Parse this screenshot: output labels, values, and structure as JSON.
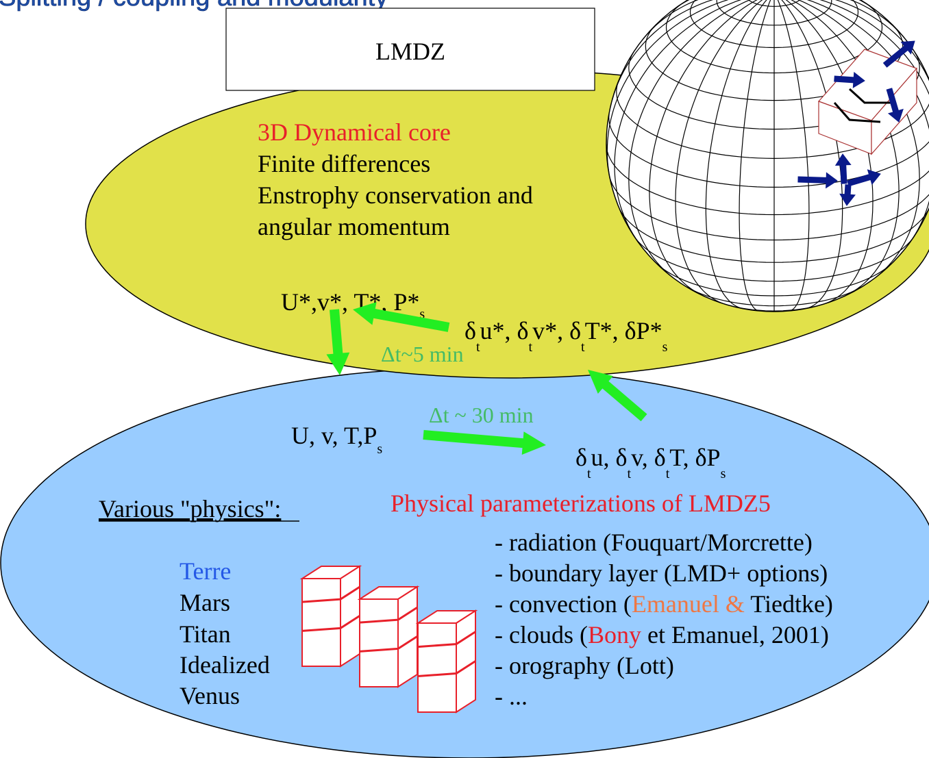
{
  "slide": {
    "title": "Splitting / coupling and modularity",
    "model_box_label": "LMDZ"
  },
  "dynamics": {
    "heading": "3D Dynamical core",
    "lines": [
      "Finite differences",
      "Enstrophy conservation and",
      "angular momentum"
    ],
    "vars_star": {
      "a": "U*,v*, T*, P*",
      "sub": "s"
    },
    "tendency_star": {
      "p1": "δ",
      "t1": "t",
      "p2": "u*, δ",
      "t2": "t",
      "p3": "v*, δ",
      "t3": "t",
      "p4": "T*, δP*",
      "sub": "s"
    },
    "dt": "Δt~5 min"
  },
  "physics": {
    "vars": {
      "a": "U, v, T,P",
      "sub": "s"
    },
    "dt": "Δt ~ 30 min",
    "tendency": {
      "p1": "δ",
      "t1": "t",
      "p2": "u, δ",
      "t2": "t",
      "p3": "v, δ",
      "t3": "t",
      "p4": "T, δP",
      "sub": "s"
    },
    "various_label": "Various \"physics\":",
    "planets": [
      "Terre",
      "Mars",
      "Titan",
      "Idealized",
      "Venus"
    ],
    "param_heading": "Physical parameterizations of LMDZ5",
    "params": {
      "radiation": "- radiation (Fouquart/Morcrette)",
      "boundary": "- boundary layer (LMD+ options)",
      "convection": {
        "pre": "- convection (",
        "author1": "Emanuel",
        "amp": " & ",
        "post": "Tiedtke)"
      },
      "clouds": {
        "pre": "- clouds (",
        "author": "Bony",
        "post": " et Emanuel, 2001)"
      },
      "orography": "- orography (Lott)",
      "more": "- ..."
    }
  },
  "colors": {
    "dyn_ellipse": "#e1e14a",
    "phys_ellipse": "#99ccff",
    "title": "#1f4ea8",
    "red": "#e8202a",
    "orange": "#ee7744",
    "blue_text": "#2458e6",
    "green_arrow": "#22ee22",
    "green_text": "#44bb66",
    "navy_arrow": "#0a1a8a"
  }
}
